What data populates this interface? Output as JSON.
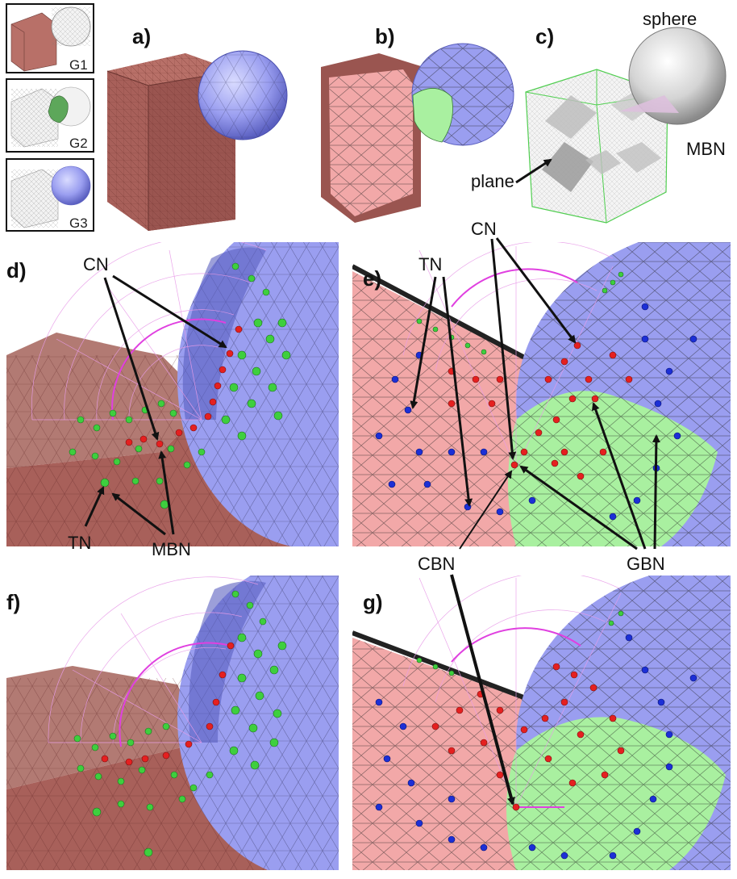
{
  "thumbnails": [
    {
      "tag": "G1"
    },
    {
      "tag": "G2"
    },
    {
      "tag": "G3"
    }
  ],
  "panels": {
    "a": "a)",
    "b": "b)",
    "c": "c)",
    "d": "d)",
    "e": "e)",
    "f": "f)",
    "g": "g)"
  },
  "annotations": {
    "sphere": "sphere",
    "mbn_c": "MBN",
    "plane": "plane",
    "cn_d": "CN",
    "tn_d": "TN",
    "mbn_d": "MBN",
    "tn_e": "TN",
    "cn_e": "CN",
    "cbn": "CBN",
    "gbn": "GBN"
  },
  "colors": {
    "cube": "#a8605a",
    "sphere_blue": "#9a9ef0",
    "pink_mesh": "#f2a8a8",
    "green_region": "#a9f0a0",
    "node_green": "#3ecf3e",
    "node_red": "#e52020",
    "node_blue": "#1c2fd6",
    "magenta": "#e040e0"
  }
}
